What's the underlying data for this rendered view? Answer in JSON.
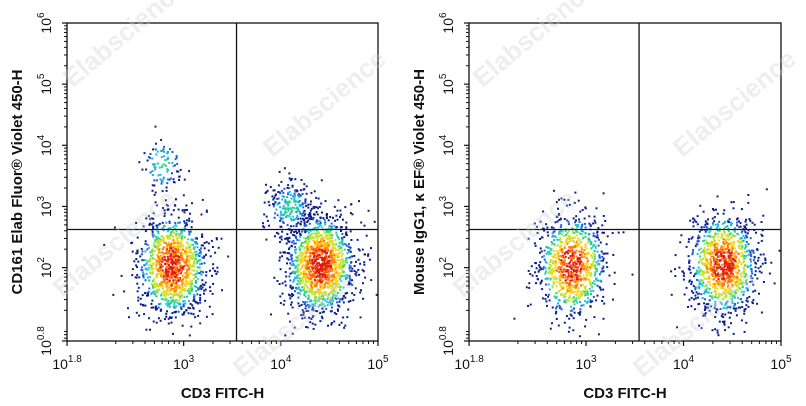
{
  "watermark": "Elabscience",
  "chart_data": [
    {
      "type": "scatter",
      "subtype": "flow-cytometry-density-plot",
      "xlabel": "CD3 FITC-H",
      "ylabel": "CD161 Elab Fluor® Violet 450-H",
      "xscale": "log",
      "yscale": "log",
      "xlim": [
        63,
        100000
      ],
      "ylim": [
        6.3,
        1000000
      ],
      "xticks": [
        {
          "base": "10",
          "exp": "1.8"
        },
        {
          "base": "10",
          "exp": "3"
        },
        {
          "base": "10",
          "exp": "4"
        },
        {
          "base": "10",
          "exp": "5"
        }
      ],
      "yticks": [
        {
          "base": "10",
          "exp": "0.8"
        },
        {
          "base": "10",
          "exp": "2"
        },
        {
          "base": "10",
          "exp": "3"
        },
        {
          "base": "10",
          "exp": "4"
        },
        {
          "base": "10",
          "exp": "5"
        },
        {
          "base": "10",
          "exp": "6"
        }
      ],
      "gate": {
        "x": 3500,
        "y": 420
      },
      "color_scale": [
        "#0a1f8c",
        "#1f5bd6",
        "#19b3e6",
        "#2ed39a",
        "#b8e62e",
        "#ffd51a",
        "#ff7a12",
        "#e01a12"
      ],
      "populations": [
        {
          "x": 750,
          "y": 110,
          "count": 1200
        },
        {
          "x": 25000,
          "y": 115,
          "count": 1400
        },
        {
          "x": 600,
          "y": 5000,
          "count": 90
        },
        {
          "x": 12000,
          "y": 1000,
          "count": 220
        }
      ]
    },
    {
      "type": "scatter",
      "subtype": "flow-cytometry-density-plot",
      "xlabel": "CD3 FITC-H",
      "ylabel": "Mouse IgG1, κ EF® Violet 450-H",
      "xscale": "log",
      "yscale": "log",
      "xlim": [
        63,
        100000
      ],
      "ylim": [
        6.3,
        1000000
      ],
      "xticks": [
        {
          "base": "10",
          "exp": "1.8"
        },
        {
          "base": "10",
          "exp": "3"
        },
        {
          "base": "10",
          "exp": "4"
        },
        {
          "base": "10",
          "exp": "5"
        }
      ],
      "yticks": [
        {
          "base": "10",
          "exp": "0.8"
        },
        {
          "base": "10",
          "exp": "2"
        },
        {
          "base": "10",
          "exp": "3"
        },
        {
          "base": "10",
          "exp": "4"
        },
        {
          "base": "10",
          "exp": "5"
        },
        {
          "base": "10",
          "exp": "6"
        }
      ],
      "gate": {
        "x": 3500,
        "y": 420
      },
      "color_scale": [
        "#0a1f8c",
        "#1f5bd6",
        "#19b3e6",
        "#2ed39a",
        "#b8e62e",
        "#ffd51a",
        "#ff7a12",
        "#e01a12"
      ],
      "populations": [
        {
          "x": 700,
          "y": 110,
          "count": 900
        },
        {
          "x": 25000,
          "y": 115,
          "count": 1100
        }
      ]
    }
  ]
}
